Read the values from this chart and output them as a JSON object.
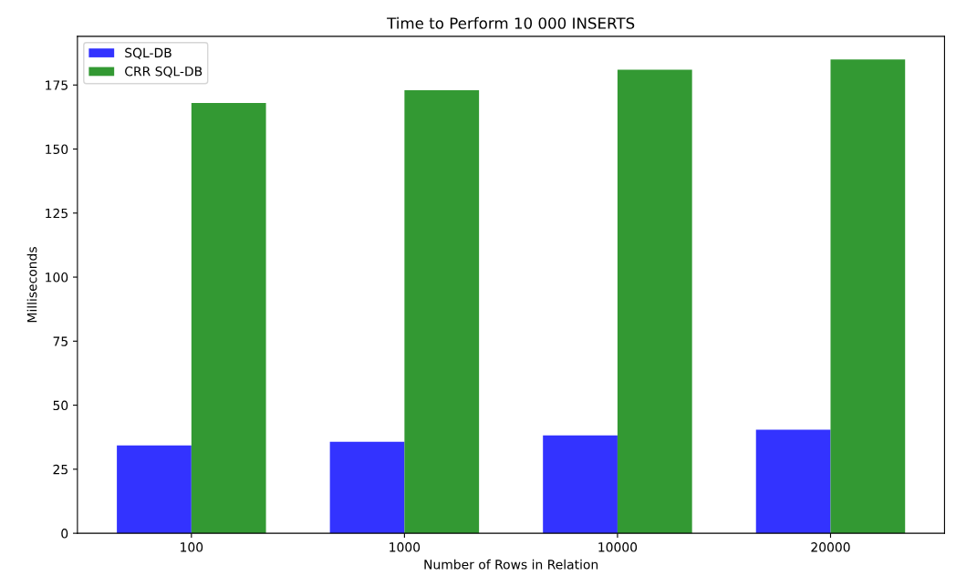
{
  "chart_data": {
    "type": "bar",
    "title": "Time to Perform 10 000 INSERTS",
    "xlabel": "Number of Rows in Relation",
    "ylabel": "Milliseconds",
    "categories": [
      "100",
      "1000",
      "10000",
      "20000"
    ],
    "series": [
      {
        "name": "SQL-DB",
        "color": "#3333ff",
        "values": [
          34.3,
          35.7,
          38.2,
          40.4
        ]
      },
      {
        "name": "CRR SQL-DB",
        "color": "#339933",
        "values": [
          168,
          173,
          181,
          185
        ]
      }
    ],
    "ylim": [
      0,
      194
    ],
    "yticks": [
      0,
      25,
      50,
      75,
      100,
      125,
      150,
      175
    ],
    "grid": false,
    "legend": "top left"
  }
}
